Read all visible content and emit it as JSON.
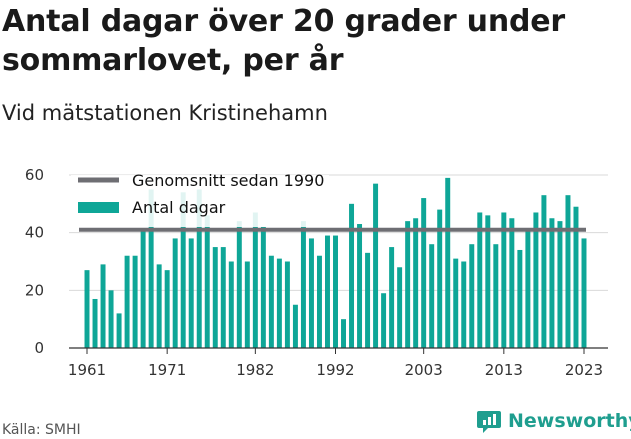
{
  "header": {
    "title": "Antal dagar över 20 grader under sommarlovet, per år",
    "subtitle": "Vid mätstationen Kristinehamn"
  },
  "footer": {
    "source": "Källa: SMHI",
    "brand": "Newsworthy",
    "brand_icon": "newsworthy-logo-icon"
  },
  "colors": {
    "bar": "#0ea697",
    "average_line": "#6e6e73",
    "grid": "#d9d9d9"
  },
  "chart_data": {
    "type": "bar",
    "title": "Antal dagar över 20 grader under sommarlovet, per år",
    "subtitle": "Vid mätstationen Kristinehamn",
    "ylim": [
      0,
      60
    ],
    "y_ticks": [
      0,
      20,
      40,
      60
    ],
    "x_tick_labels": [
      "1961",
      "1971",
      "1982",
      "1992",
      "2003",
      "2013",
      "2023"
    ],
    "categories": [
      1961,
      1962,
      1963,
      1964,
      1965,
      1966,
      1967,
      1968,
      1969,
      1970,
      1971,
      1972,
      1973,
      1974,
      1975,
      1976,
      1977,
      1978,
      1979,
      1980,
      1981,
      1982,
      1983,
      1984,
      1985,
      1986,
      1987,
      1988,
      1989,
      1990,
      1991,
      1992,
      1993,
      1994,
      1995,
      1996,
      1997,
      1998,
      1999,
      2000,
      2001,
      2002,
      2003,
      2004,
      2005,
      2006,
      2007,
      2008,
      2009,
      2010,
      2011,
      2012,
      2013,
      2014,
      2015,
      2016,
      2017,
      2018,
      2019,
      2020,
      2021,
      2022,
      2023
    ],
    "series": [
      {
        "name": "Antal dagar",
        "values": [
          27,
          17,
          29,
          20,
          12,
          32,
          32,
          41,
          55,
          29,
          27,
          38,
          54,
          38,
          55,
          46,
          35,
          35,
          30,
          44,
          30,
          47,
          42,
          32,
          31,
          30,
          15,
          44,
          38,
          32,
          39,
          39,
          10,
          50,
          43,
          33,
          57,
          19,
          35,
          28,
          44,
          45,
          52,
          36,
          48,
          59,
          31,
          30,
          36,
          47,
          46,
          36,
          47,
          45,
          34,
          41,
          47,
          53,
          45,
          44,
          53,
          49,
          38
        ]
      }
    ],
    "average": {
      "name": "Genomsnitt sedan 1990",
      "value": 41
    },
    "legend": {
      "position": "top-left",
      "items": [
        "Genomsnitt sedan 1990",
        "Antal dagar"
      ]
    },
    "grid": true
  }
}
